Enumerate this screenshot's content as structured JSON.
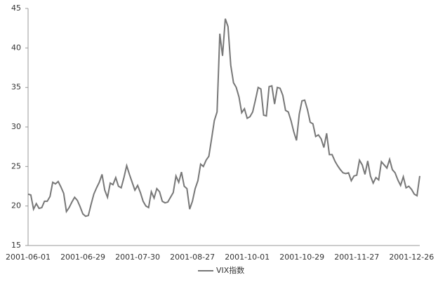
{
  "chart_data": {
    "type": "line",
    "categories": [
      "2001-06-01",
      null,
      null,
      null,
      null,
      null,
      null,
      null,
      null,
      null,
      null,
      null,
      null,
      null,
      null,
      null,
      null,
      null,
      null,
      null,
      "2001-06-29",
      null,
      null,
      null,
      null,
      null,
      null,
      null,
      null,
      null,
      null,
      null,
      null,
      null,
      null,
      null,
      null,
      null,
      null,
      null,
      "2001-07-30",
      null,
      null,
      null,
      null,
      null,
      null,
      null,
      null,
      null,
      null,
      null,
      null,
      null,
      null,
      null,
      null,
      null,
      null,
      null,
      "2001-08-27",
      null,
      null,
      null,
      null,
      null,
      null,
      null,
      null,
      null,
      null,
      null,
      null,
      null,
      null,
      null,
      null,
      null,
      null,
      null,
      "2001-10-01",
      null,
      null,
      null,
      null,
      null,
      null,
      null,
      null,
      null,
      null,
      null,
      null,
      null,
      null,
      null,
      null,
      null,
      null,
      null,
      "2001-10-29",
      null,
      null,
      null,
      null,
      null,
      null,
      null,
      null,
      null,
      null,
      null,
      null,
      null,
      null,
      null,
      null,
      null,
      null,
      null,
      "2001-11-27",
      null,
      null,
      null,
      null,
      null,
      null,
      null,
      null,
      null,
      null,
      null,
      null,
      null,
      null,
      null,
      null,
      null,
      null,
      null,
      "2001-12-26",
      null,
      null,
      null
    ],
    "series": [
      {
        "name": "VIX指数",
        "color": "#777777",
        "values": [
          21.5,
          21.4,
          19.6,
          20.3,
          19.7,
          19.8,
          20.6,
          20.6,
          21.2,
          23.0,
          22.8,
          23.1,
          22.4,
          21.6,
          19.3,
          19.8,
          20.5,
          21.1,
          20.7,
          19.9,
          19.0,
          18.7,
          18.8,
          20.2,
          21.5,
          22.3,
          23.0,
          24.0,
          22.0,
          21.1,
          22.9,
          22.7,
          23.6,
          22.5,
          22.3,
          23.6,
          25.1,
          24.0,
          23.0,
          22.0,
          22.6,
          21.7,
          20.6,
          20.0,
          19.8,
          21.8,
          21.0,
          22.2,
          21.8,
          20.6,
          20.4,
          20.5,
          21.1,
          21.7,
          23.8,
          23.0,
          24.3,
          22.5,
          22.2,
          19.6,
          20.6,
          22.2,
          23.2,
          25.3,
          25.0,
          25.8,
          26.3,
          28.5,
          30.8,
          31.9,
          41.8,
          39.0,
          43.7,
          42.7,
          37.8,
          35.6,
          35.0,
          33.8,
          31.8,
          32.3,
          31.1,
          31.3,
          31.9,
          33.4,
          35.0,
          34.8,
          31.5,
          31.4,
          35.1,
          35.2,
          32.9,
          35.0,
          34.9,
          34.0,
          32.1,
          31.9,
          30.8,
          29.4,
          28.3,
          31.6,
          33.3,
          33.4,
          32.2,
          30.6,
          30.4,
          28.8,
          29.0,
          28.5,
          27.4,
          29.2,
          26.5,
          26.5,
          25.7,
          25.1,
          24.6,
          24.2,
          24.1,
          24.2,
          23.2,
          23.8,
          23.9,
          25.8,
          25.2,
          24.0,
          25.7,
          23.8,
          22.9,
          23.6,
          23.3,
          25.6,
          25.2,
          24.8,
          25.9,
          24.6,
          24.2,
          23.3,
          22.6,
          23.7,
          22.3,
          22.5,
          22.1,
          21.5,
          21.3,
          23.8
        ]
      }
    ],
    "ylim": [
      15,
      45
    ],
    "yticks": [
      15,
      20,
      25,
      30,
      35,
      40,
      45
    ],
    "grid": false,
    "legend": "bottom"
  }
}
